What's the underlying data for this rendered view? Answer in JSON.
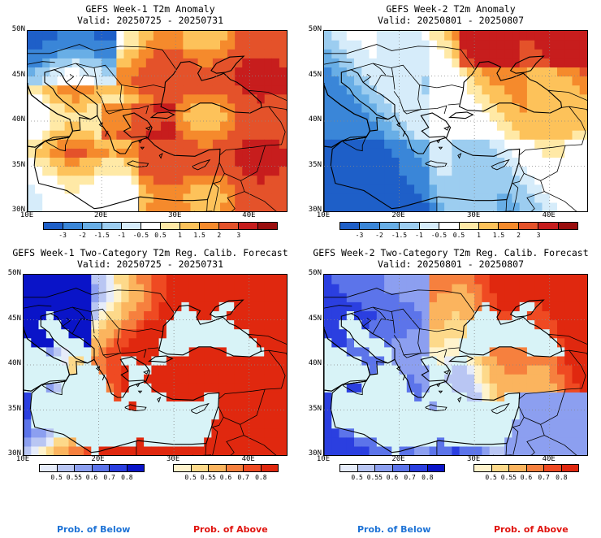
{
  "panels": [
    {
      "id": "p1",
      "title": "GEFS Week-1 T2m Anomaly",
      "valid": "Valid: 20250725 - 20250731",
      "product": "anomaly",
      "colorbar": {
        "labels": [
          "-3",
          "-2",
          "-1.5",
          "-1",
          "-0.5",
          "0.5",
          "1",
          "1.5",
          "2",
          "3"
        ],
        "colors": [
          "#1e5fc8",
          "#3a86d8",
          "#68aee6",
          "#9ccdf0",
          "#d6ecfa",
          "#ffffff",
          "#ffe9a6",
          "#fdc25a",
          "#f58a2c",
          "#e4522a",
          "#c71d1d",
          "#9a0e0e"
        ]
      }
    },
    {
      "id": "p2",
      "title": "GEFS Week-2 T2m Anomaly",
      "valid": "Valid: 20250801 - 20250807",
      "product": "anomaly",
      "colorbar": {
        "labels": [
          "-3",
          "-2",
          "-1.5",
          "-1",
          "-0.5",
          "0.5",
          "1",
          "1.5",
          "2",
          "3"
        ],
        "colors": [
          "#1e5fc8",
          "#3a86d8",
          "#68aee6",
          "#9ccdf0",
          "#d6ecfa",
          "#ffffff",
          "#ffe9a6",
          "#fdc25a",
          "#f58a2c",
          "#e4522a",
          "#c71d1d",
          "#9a0e0e"
        ]
      }
    },
    {
      "id": "p3",
      "title": "GEFS Week-1 Two-Category T2m Reg. Calib. Forecast",
      "valid": "Valid: 20250725 - 20250731",
      "product": "probability",
      "below_bar": {
        "labels": [
          "0.5",
          "0.55",
          "0.6",
          "0.7",
          "0.8"
        ],
        "colors": [
          "#e6ecfa",
          "#b9c6f3",
          "#8c9ff0",
          "#5c74ea",
          "#2b3fe0",
          "#0a14c8"
        ]
      },
      "above_bar": {
        "labels": [
          "0.5",
          "0.55",
          "0.6",
          "0.7",
          "0.8"
        ],
        "colors": [
          "#fff3cc",
          "#fdd98a",
          "#fbb45e",
          "#f6803e",
          "#ef4a22",
          "#e0280f"
        ]
      }
    },
    {
      "id": "p4",
      "title": "GEFS Week-2 Two-Category T2m Reg. Calib. Forecast",
      "valid": "Valid: 20250801 - 20250807",
      "product": "probability",
      "below_bar": {
        "labels": [
          "0.5",
          "0.55",
          "0.6",
          "0.7",
          "0.8"
        ],
        "colors": [
          "#e6ecfa",
          "#b9c6f3",
          "#8c9ff0",
          "#5c74ea",
          "#2b3fe0",
          "#0a14c8"
        ]
      },
      "above_bar": {
        "labels": [
          "0.5",
          "0.55",
          "0.6",
          "0.7",
          "0.8"
        ],
        "colors": [
          "#fff3cc",
          "#fdd98a",
          "#fbb45e",
          "#f6803e",
          "#ef4a22",
          "#e0280f"
        ]
      }
    }
  ],
  "axes": {
    "lat_labels": [
      "50N",
      "45N",
      "40N",
      "35N",
      "30N"
    ],
    "lon_labels": [
      "10E",
      "20E",
      "30E",
      "40E"
    ]
  },
  "legend": {
    "below_text": "Prob. of Below",
    "above_text": "Prob. of Above",
    "below_color": "#1e73d6",
    "above_color": "#e0140f"
  },
  "sea_color": "#d8f3f7"
}
